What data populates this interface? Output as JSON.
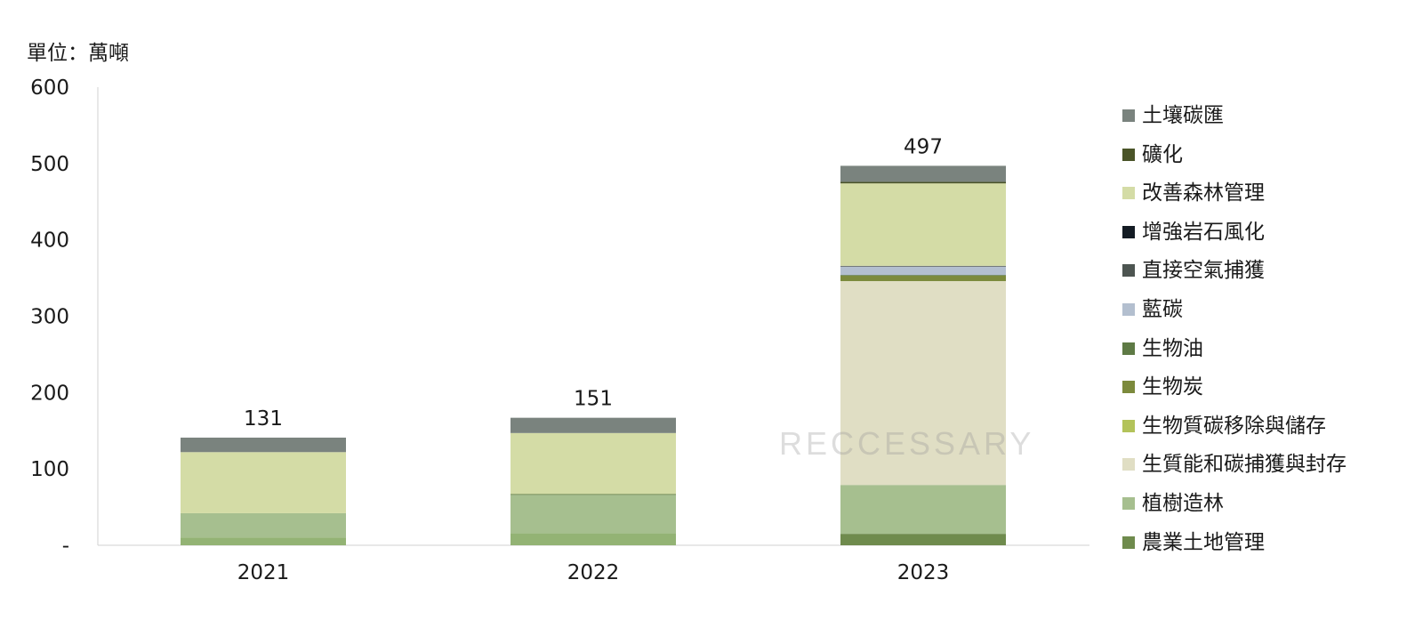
{
  "unit_label": "單位：萬噸",
  "watermark": "RECCESSARY",
  "chart_data": {
    "type": "bar",
    "stacked": true,
    "categories": [
      "2021",
      "2022",
      "2023"
    ],
    "totals": [
      "131",
      "151",
      "497"
    ],
    "y_ticks": [
      "-",
      "100",
      "200",
      "300",
      "400",
      "500",
      "600"
    ],
    "ylim": [
      0,
      600
    ],
    "legend_position": "right",
    "series": [
      {
        "name": "農業土地管理",
        "color": "#6f8b4d",
        "values": [
          0,
          0,
          15
        ]
      },
      {
        "name": "植樹造林",
        "color": "#a6bf8f",
        "values": [
          32,
          50,
          64
        ]
      },
      {
        "name": "生質能和碳捕獲與封存",
        "color": "#e0dec4",
        "values": [
          0,
          0,
          267
        ]
      },
      {
        "name": "生物質碳移除與儲存",
        "color": "#b3c35a",
        "values": [
          0,
          0,
          0
        ]
      },
      {
        "name": "生物炭",
        "color": "#7c8a3c",
        "values": [
          0,
          0,
          7
        ]
      },
      {
        "name": "生物油",
        "color": "#5e7a45",
        "values": [
          0,
          1,
          1
        ]
      },
      {
        "name": "藍碳",
        "color": "#b3bfcf",
        "values": [
          0,
          0,
          11
        ]
      },
      {
        "name": "直接空氣捕獲",
        "color": "#4d5551",
        "values": [
          0,
          0,
          1
        ]
      },
      {
        "name": "增強岩石風化",
        "color": "#141c24",
        "values": [
          0,
          0,
          0
        ]
      },
      {
        "name": "改善森林管理",
        "color": "#d4dca6",
        "values": [
          80,
          80,
          108
        ]
      },
      {
        "name": "礦化",
        "color": "#4a5428",
        "values": [
          0,
          0,
          2
        ]
      },
      {
        "name": "土壤碳匯",
        "color": "#7a837e",
        "values": [
          19,
          20,
          21
        ]
      }
    ],
    "bar_bottom_segments": {
      "color": "#93b374",
      "values": [
        10,
        16,
        0
      ]
    },
    "legend_order": [
      "土壤碳匯",
      "礦化",
      "改善森林管理",
      "增強岩石風化",
      "直接空氣捕獲",
      "藍碳",
      "生物油",
      "生物炭",
      "生物質碳移除與儲存",
      "生質能和碳捕獲與封存",
      "植樹造林",
      "農業土地管理"
    ]
  }
}
